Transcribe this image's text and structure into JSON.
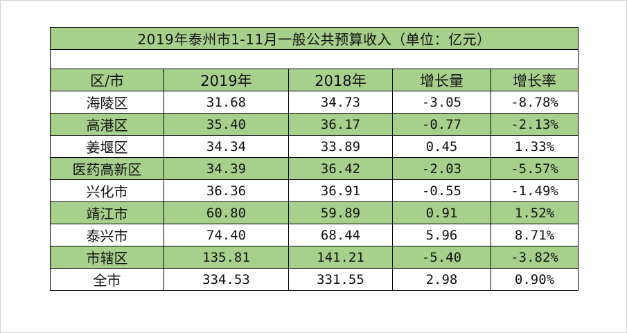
{
  "title": "2019年泰州市1-11月一般公共预算收入（单位：亿元）",
  "headers": [
    "区/市",
    "2019年",
    "2018年",
    "增长量",
    "增长率"
  ],
  "rows": [
    {
      "region": "海陵区",
      "y2019": "31.68",
      "y2018": "34.73",
      "change": "-3.05",
      "rate": "-8.78%"
    },
    {
      "region": "高港区",
      "y2019": "35.40",
      "y2018": "36.17",
      "change": "-0.77",
      "rate": "-2.13%"
    },
    {
      "region": "姜堰区",
      "y2019": "34.34",
      "y2018": "33.89",
      "change": "0.45",
      "rate": "1.33%"
    },
    {
      "region": "医药高新区",
      "y2019": "34.39",
      "y2018": "36.42",
      "change": "-2.03",
      "rate": "-5.57%"
    },
    {
      "region": "兴化市",
      "y2019": "36.36",
      "y2018": "36.91",
      "change": "-0.55",
      "rate": "-1.49%"
    },
    {
      "region": "靖江市",
      "y2019": "60.80",
      "y2018": "59.89",
      "change": "0.91",
      "rate": "1.52%"
    },
    {
      "region": "泰兴市",
      "y2019": "74.40",
      "y2018": "68.44",
      "change": "5.96",
      "rate": "8.71%"
    },
    {
      "region": "市辖区",
      "y2019": "135.81",
      "y2018": "141.21",
      "change": "-5.40",
      "rate": "-3.82%"
    },
    {
      "region": "全市",
      "y2019": "334.53",
      "y2018": "331.55",
      "change": "2.98",
      "rate": "0.90%"
    }
  ],
  "colors": {
    "band_green": "#a8d08d",
    "band_white": "#ffffff",
    "border": "#000000"
  }
}
